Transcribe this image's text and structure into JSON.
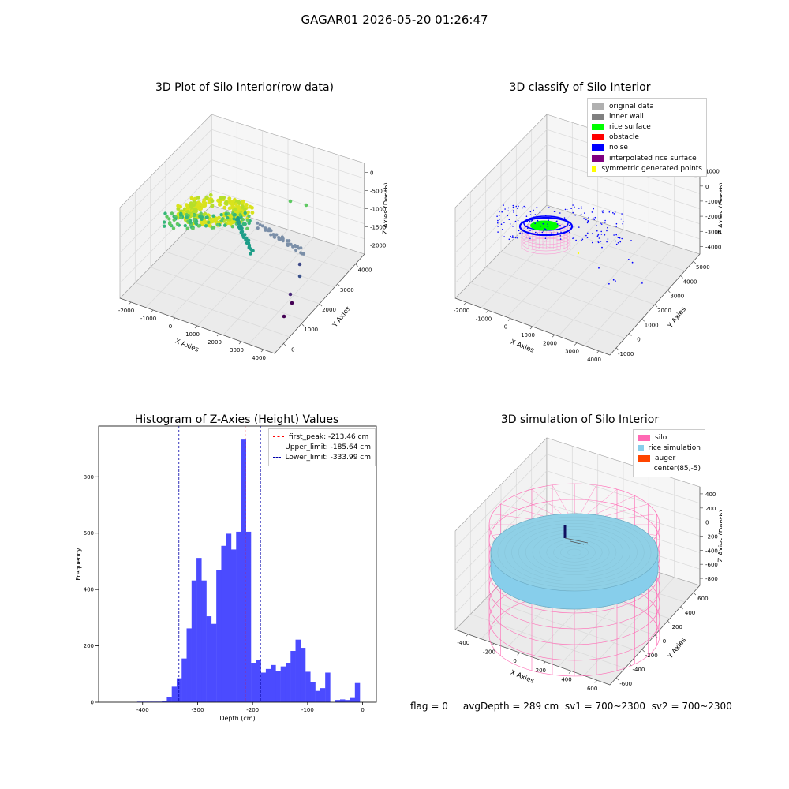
{
  "figure": {
    "suptitle": "GAGAR01 2026-05-20 01:26:47",
    "status_text": "flag = 0     avgDepth = 289 cm  sv1 = 700~2300  sv2 = 700~2300"
  },
  "colors": {
    "original_data": "#b0b0b0",
    "inner_wall": "#808080",
    "rice_surface": "#00ff00",
    "obstacle": "#ff0000",
    "noise": "#0000ff",
    "interpolated_rice_surface": "#800080",
    "symmetric_generated_points": "#ffff00",
    "silo": "#ff69b4",
    "rice_simulation": "#87ceeb",
    "auger": "#ff4500",
    "hist_bar": "#4b4bff",
    "first_peak_line": "#ff0000",
    "limit_line": "#0000aa"
  },
  "panels": {
    "raw": {
      "title": "3D Plot of Silo Interior(row data)",
      "xlabel": "X Axies",
      "ylabel": "Y Axies",
      "zlabel": "Z Axies (Depth)",
      "xticks": [
        "-2000",
        "-1000",
        "0",
        "1000",
        "2000",
        "3000",
        "4000"
      ],
      "yticks": [
        "0",
        "1000",
        "2000",
        "3000",
        "4000"
      ],
      "zticks": [
        "0",
        "-500",
        "-1000",
        "-1500",
        "-2000"
      ]
    },
    "classify": {
      "title": "3D classify of Silo Interior",
      "xlabel": "X Axies",
      "ylabel": "Y Axies",
      "zlabel": "Z Axies (Depth)",
      "xticks": [
        "-2000",
        "-1000",
        "0",
        "1000",
        "2000",
        "3000",
        "4000"
      ],
      "yticks": [
        "-1000",
        "0",
        "1000",
        "2000",
        "3000",
        "4000",
        "5000"
      ],
      "zticks": [
        "1000",
        "0",
        "-1000",
        "-2000",
        "-3000",
        "-4000"
      ],
      "legend": [
        {
          "label": "original data",
          "color": "#b0b0b0"
        },
        {
          "label": "inner wall",
          "color": "#808080"
        },
        {
          "label": "rice surface",
          "color": "#00ff00"
        },
        {
          "label": "obstacle",
          "color": "#ff0000"
        },
        {
          "label": "noise",
          "color": "#0000ff"
        },
        {
          "label": "interpolated rice surface",
          "color": "#800080"
        },
        {
          "label": "symmetric generated points",
          "color": "#ffff00"
        }
      ]
    },
    "simulation": {
      "title": "3D simulation of Silo Interior",
      "xlabel": "X Axies",
      "ylabel": "Y Axies",
      "zlabel": "Z Axies (Depth)",
      "xticks": [
        "-400",
        "-200",
        "0",
        "200",
        "400",
        "600"
      ],
      "yticks": [
        "-600",
        "-400",
        "-200",
        "0",
        "200",
        "400",
        "600"
      ],
      "zticks": [
        "400",
        "200",
        "0",
        "-200",
        "-400",
        "-600",
        "-800"
      ],
      "legend": [
        {
          "label": "silo",
          "color": "#ff69b4"
        },
        {
          "label": "rice simulation",
          "color": "#87ceeb"
        },
        {
          "label": "auger",
          "color": "#ff4500"
        },
        {
          "label": "center(85,-5)",
          "color": "#ffffff"
        }
      ]
    }
  },
  "chart_data": {
    "type": "bar",
    "title": "Histogram of Z-Axies (Height) Values",
    "xlabel": "Depth (cm)",
    "ylabel": "Frequency",
    "xlim": [
      -480,
      25
    ],
    "ylim": [
      0,
      980
    ],
    "xticks": [
      -400,
      -300,
      -200,
      -100,
      0
    ],
    "yticks": [
      0,
      200,
      400,
      600,
      800
    ],
    "bin_width": 9,
    "bin_starts": [
      -410,
      -401,
      -392,
      -383,
      -374,
      -365,
      -356,
      -347,
      -338,
      -329,
      -320,
      -311,
      -302,
      -293,
      -284,
      -275,
      -266,
      -257,
      -248,
      -239,
      -230,
      -221,
      -212,
      -203,
      -194,
      -185,
      -176,
      -167,
      -158,
      -149,
      -140,
      -131,
      -122,
      -113,
      -104,
      -95,
      -86,
      -77,
      -68,
      -59,
      -50,
      -41,
      -32,
      -23,
      -14,
      -5
    ],
    "values": [
      2,
      2,
      2,
      2,
      2,
      3,
      18,
      55,
      85,
      155,
      262,
      432,
      512,
      432,
      305,
      278,
      470,
      555,
      598,
      542,
      605,
      932,
      605,
      140,
      150,
      105,
      118,
      132,
      112,
      127,
      140,
      182,
      222,
      193,
      108,
      72,
      40,
      50,
      105,
      0,
      8,
      10,
      8,
      15,
      68,
      0
    ],
    "lines": [
      {
        "name": "first_peak: -213.46 cm",
        "x": -213.46,
        "color": "#ff0000"
      },
      {
        "name": "Upper_limit: -185.64 cm",
        "x": -185.64,
        "color": "#0000aa"
      },
      {
        "name": "Lower_limit: -333.99 cm",
        "x": -333.99,
        "color": "#0000aa"
      }
    ]
  }
}
